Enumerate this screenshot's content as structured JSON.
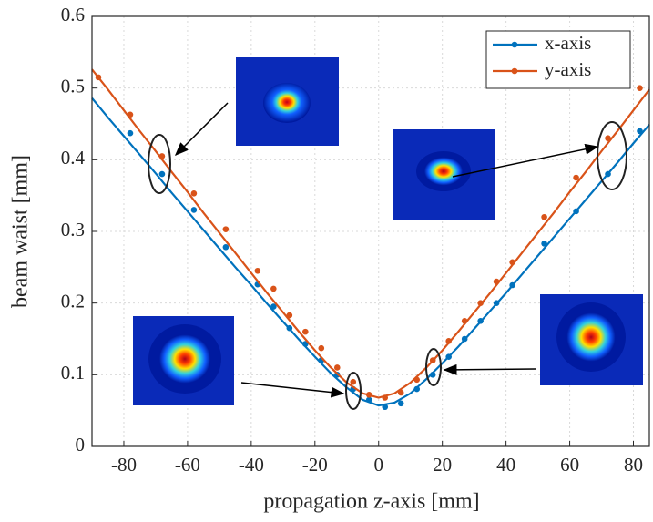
{
  "chart_data": {
    "type": "scatter-fit",
    "x_label": "propagation z-axis [mm]",
    "y_label": "beam waist [mm]",
    "xlim": [
      -90,
      85
    ],
    "ylim": [
      0,
      0.6
    ],
    "xticks": [
      -80,
      -60,
      -40,
      -20,
      0,
      20,
      40,
      60,
      80
    ],
    "yticks": [
      0,
      0.1,
      0.2,
      0.3,
      0.4,
      0.5,
      0.6
    ],
    "grid": true,
    "legend": "top-right",
    "fit_x": [
      -90,
      -85,
      -80,
      -75,
      -70,
      -65,
      -60,
      -55,
      -50,
      -45,
      -40,
      -35,
      -30,
      -25,
      -20,
      -15,
      -10,
      -5,
      0,
      5,
      10,
      15,
      20,
      25,
      30,
      35,
      40,
      45,
      50,
      55,
      60,
      65,
      70,
      75,
      80,
      85
    ],
    "series": [
      {
        "name": "x-axis",
        "color": "#0072bd",
        "x": [
          -78,
          -68,
          -58,
          -48,
          -38,
          -33,
          -28,
          -23,
          -18,
          -13,
          -8,
          -3,
          2,
          7,
          12,
          17,
          22,
          27,
          32,
          37,
          42,
          52,
          62,
          72,
          82
        ],
        "values": [
          0.437,
          0.38,
          0.33,
          0.278,
          0.226,
          0.195,
          0.165,
          0.143,
          0.12,
          0.1,
          0.08,
          0.065,
          0.055,
          0.06,
          0.08,
          0.1,
          0.125,
          0.15,
          0.175,
          0.2,
          0.225,
          0.283,
          0.328,
          0.38,
          0.44
        ],
        "fit": [
          0.486,
          0.459,
          0.433,
          0.407,
          0.381,
          0.354,
          0.328,
          0.302,
          0.276,
          0.25,
          0.225,
          0.199,
          0.174,
          0.149,
          0.125,
          0.102,
          0.082,
          0.065,
          0.057,
          0.061,
          0.074,
          0.094,
          0.116,
          0.139,
          0.164,
          0.189,
          0.214,
          0.24,
          0.266,
          0.292,
          0.318,
          0.344,
          0.37,
          0.396,
          0.423,
          0.449
        ]
      },
      {
        "name": "y-axis",
        "color": "#d95319",
        "x": [
          -88,
          -78,
          -68,
          -58,
          -48,
          -38,
          -33,
          -28,
          -23,
          -18,
          -13,
          -8,
          -3,
          2,
          7,
          12,
          17,
          22,
          27,
          32,
          37,
          42,
          52,
          62,
          72,
          82
        ],
        "values": [
          0.515,
          0.463,
          0.405,
          0.353,
          0.303,
          0.245,
          0.22,
          0.183,
          0.16,
          0.137,
          0.11,
          0.09,
          0.072,
          0.068,
          0.075,
          0.093,
          0.12,
          0.147,
          0.175,
          0.2,
          0.23,
          0.257,
          0.32,
          0.375,
          0.43,
          0.5
        ],
        "fit": [
          0.526,
          0.498,
          0.469,
          0.44,
          0.412,
          0.383,
          0.355,
          0.326,
          0.298,
          0.27,
          0.242,
          0.214,
          0.187,
          0.16,
          0.134,
          0.11,
          0.089,
          0.074,
          0.068,
          0.074,
          0.089,
          0.11,
          0.134,
          0.16,
          0.187,
          0.214,
          0.242,
          0.27,
          0.298,
          0.326,
          0.355,
          0.383,
          0.412,
          0.44,
          0.469,
          0.498
        ]
      }
    ]
  }
}
